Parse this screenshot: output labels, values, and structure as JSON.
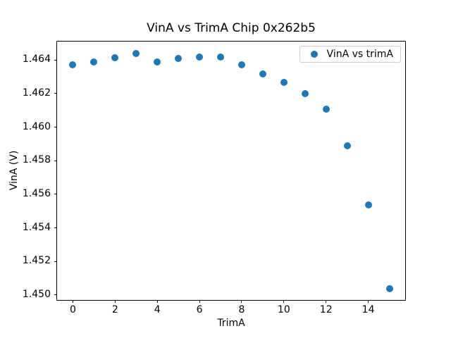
{
  "chart_data": {
    "type": "scatter",
    "title": "VinA vs TrimA Chip 0x262b5",
    "xlabel": "TrimA",
    "ylabel": "VinA (V)",
    "legend": [
      "VinA vs trimA"
    ],
    "legend_position": "upper right",
    "grid": false,
    "x": [
      0,
      1,
      2,
      3,
      4,
      5,
      6,
      7,
      8,
      9,
      10,
      11,
      12,
      13,
      14,
      15
    ],
    "y": [
      1.46372,
      1.46388,
      1.46415,
      1.46438,
      1.4639,
      1.46408,
      1.46417,
      1.46416,
      1.4637,
      1.46318,
      1.46268,
      1.46199,
      1.46106,
      1.45888,
      1.45538,
      1.45036
    ],
    "xlim": [
      -0.75,
      15.75
    ],
    "ylim": [
      1.4497,
      1.4651
    ],
    "xticks": [
      0,
      2,
      4,
      6,
      8,
      10,
      12,
      14
    ],
    "yticks": [
      1.45,
      1.452,
      1.454,
      1.456,
      1.458,
      1.46,
      1.462,
      1.464
    ],
    "colors": {
      "marker": "#1f77b4",
      "spine": "#000000",
      "legend_border": "#cccccc",
      "background": "#ffffff"
    }
  }
}
